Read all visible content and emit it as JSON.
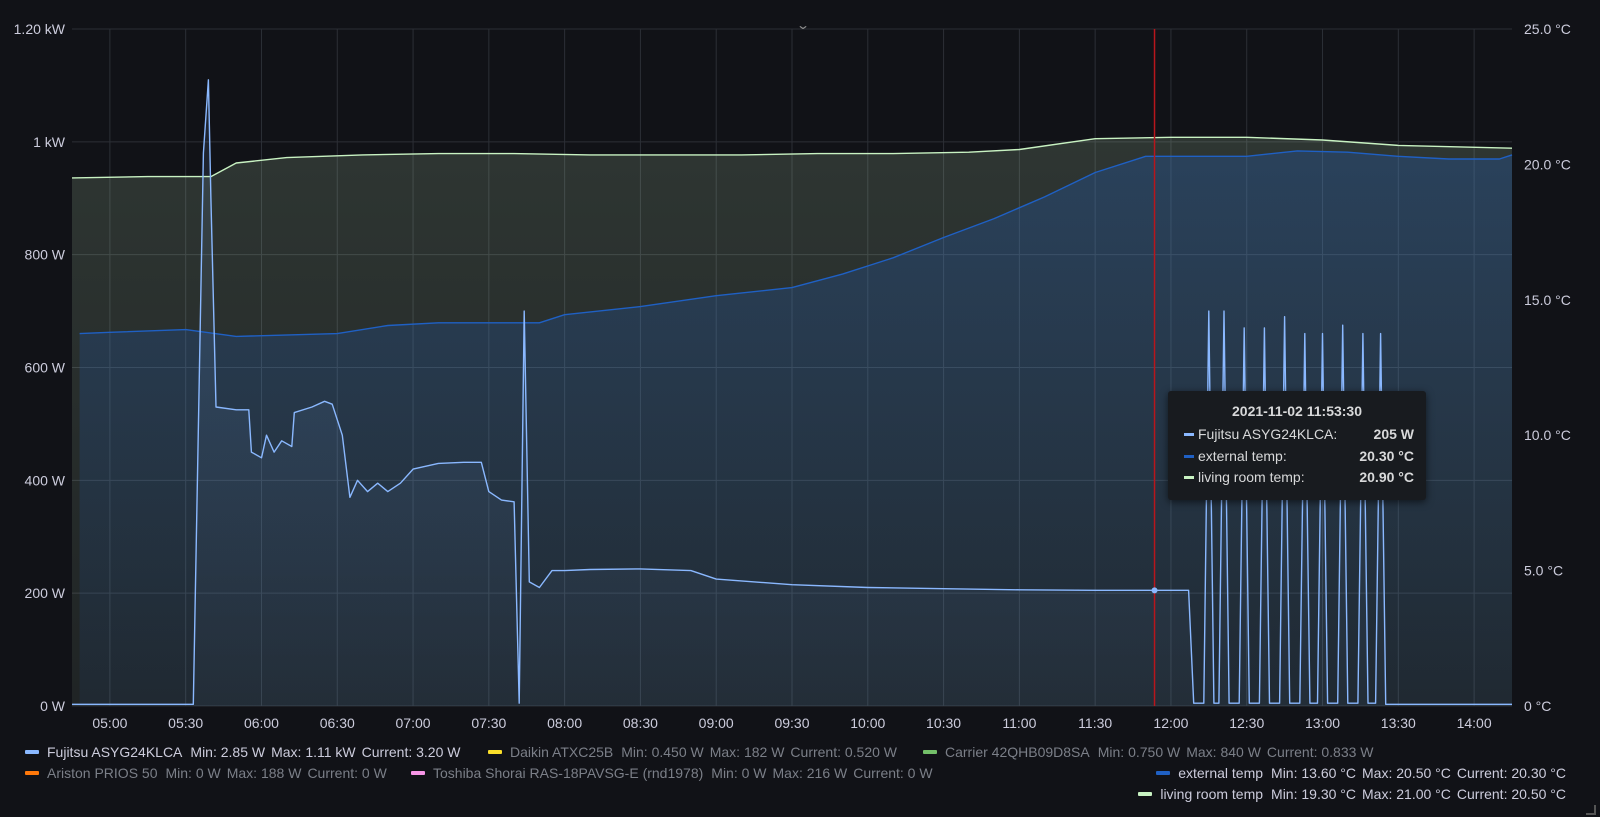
{
  "chart_data": {
    "type": "line",
    "x_ticks": [
      "05:00",
      "05:30",
      "06:00",
      "06:30",
      "07:00",
      "07:30",
      "08:00",
      "08:30",
      "09:00",
      "09:30",
      "10:00",
      "10:30",
      "11:00",
      "11:30",
      "12:00",
      "12:30",
      "13:00",
      "13:30",
      "14:00"
    ],
    "y_left_ticks": [
      "0 W",
      "200 W",
      "400 W",
      "600 W",
      "800 W",
      "1 kW",
      "1.20 kW"
    ],
    "y_left_values": [
      0,
      200,
      400,
      600,
      800,
      1000,
      1200
    ],
    "y_left_range": [
      0,
      1200
    ],
    "y_right_ticks": [
      "0 °C",
      "5.0 °C",
      "10.0 °C",
      "15.0 °C",
      "20.0 °C",
      "25.0 °C"
    ],
    "y_right_values": [
      0,
      5,
      10,
      15,
      20,
      25
    ],
    "y_right_range": [
      0,
      25
    ],
    "x_range": [
      "04:45",
      "14:15"
    ],
    "grid": true,
    "series": [
      {
        "name": "living room temp",
        "axis": "right",
        "color": "#c8f2c2",
        "fill": true,
        "points": [
          [
            "04:45",
            19.5
          ],
          [
            "05:15",
            19.55
          ],
          [
            "05:40",
            19.55
          ],
          [
            "05:50",
            20.05
          ],
          [
            "06:10",
            20.25
          ],
          [
            "06:40",
            20.35
          ],
          [
            "07:10",
            20.4
          ],
          [
            "07:40",
            20.4
          ],
          [
            "08:10",
            20.35
          ],
          [
            "08:40",
            20.35
          ],
          [
            "09:10",
            20.35
          ],
          [
            "09:40",
            20.4
          ],
          [
            "10:10",
            20.4
          ],
          [
            "10:40",
            20.45
          ],
          [
            "11:00",
            20.55
          ],
          [
            "11:30",
            20.95
          ],
          [
            "12:00",
            21.0
          ],
          [
            "12:30",
            21.0
          ],
          [
            "13:00",
            20.9
          ],
          [
            "13:30",
            20.7
          ],
          [
            "14:15",
            20.6
          ]
        ]
      },
      {
        "name": "external temp",
        "axis": "right",
        "color": "#1f60c4",
        "fill": true,
        "points": [
          [
            "04:48",
            13.75
          ],
          [
            "05:00",
            13.8
          ],
          [
            "05:30",
            13.9
          ],
          [
            "05:50",
            13.65
          ],
          [
            "06:30",
            13.75
          ],
          [
            "06:50",
            14.05
          ],
          [
            "07:10",
            14.15
          ],
          [
            "07:50",
            14.15
          ],
          [
            "08:00",
            14.45
          ],
          [
            "08:30",
            14.75
          ],
          [
            "09:00",
            15.15
          ],
          [
            "09:30",
            15.45
          ],
          [
            "09:50",
            15.95
          ],
          [
            "10:10",
            16.55
          ],
          [
            "10:30",
            17.3
          ],
          [
            "10:50",
            18.0
          ],
          [
            "11:10",
            18.8
          ],
          [
            "11:30",
            19.7
          ],
          [
            "11:50",
            20.3
          ],
          [
            "12:10",
            20.3
          ],
          [
            "12:30",
            20.3
          ],
          [
            "12:50",
            20.5
          ],
          [
            "13:10",
            20.45
          ],
          [
            "13:30",
            20.3
          ],
          [
            "13:50",
            20.2
          ],
          [
            "14:10",
            20.2
          ],
          [
            "14:15",
            20.35
          ]
        ]
      },
      {
        "name": "Fujitsu ASYG24KLCA",
        "axis": "left",
        "color": "#8ab8ff",
        "fill": true,
        "points": [
          [
            "04:45",
            3
          ],
          [
            "05:33",
            3
          ],
          [
            "05:37",
            980
          ],
          [
            "05:39",
            1110
          ],
          [
            "05:40",
            900
          ],
          [
            "05:42",
            530
          ],
          [
            "05:50",
            525
          ],
          [
            "05:55",
            525
          ],
          [
            "05:56",
            450
          ],
          [
            "06:00",
            440
          ],
          [
            "06:02",
            480
          ],
          [
            "06:05",
            450
          ],
          [
            "06:08",
            470
          ],
          [
            "06:12",
            460
          ],
          [
            "06:13",
            520
          ],
          [
            "06:20",
            530
          ],
          [
            "06:25",
            540
          ],
          [
            "06:28",
            535
          ],
          [
            "06:32",
            480
          ],
          [
            "06:35",
            370
          ],
          [
            "06:38",
            400
          ],
          [
            "06:42",
            380
          ],
          [
            "06:46",
            395
          ],
          [
            "06:50",
            380
          ],
          [
            "06:55",
            395
          ],
          [
            "07:00",
            420
          ],
          [
            "07:10",
            430
          ],
          [
            "07:20",
            432
          ],
          [
            "07:27",
            432
          ],
          [
            "07:30",
            380
          ],
          [
            "07:35",
            365
          ],
          [
            "07:40",
            362
          ],
          [
            "07:42",
            5
          ],
          [
            "07:44",
            700
          ],
          [
            "07:46",
            220
          ],
          [
            "07:50",
            210
          ],
          [
            "07:55",
            240
          ],
          [
            "08:00",
            240
          ],
          [
            "08:10",
            242
          ],
          [
            "08:30",
            243
          ],
          [
            "08:50",
            240
          ],
          [
            "09:00",
            225
          ],
          [
            "09:30",
            215
          ],
          [
            "10:00",
            210
          ],
          [
            "10:30",
            208
          ],
          [
            "11:00",
            206
          ],
          [
            "11:30",
            205
          ],
          [
            "11:53",
            205
          ],
          [
            "12:02",
            205
          ],
          [
            "12:07",
            205
          ],
          [
            "12:09",
            5
          ],
          [
            "12:13",
            5
          ],
          [
            "12:15",
            700
          ],
          [
            "12:17",
            5
          ],
          [
            "12:19",
            5
          ],
          [
            "12:21",
            700
          ],
          [
            "12:23",
            5
          ],
          [
            "12:27",
            5
          ],
          [
            "12:29",
            670
          ],
          [
            "12:31",
            5
          ],
          [
            "12:35",
            5
          ],
          [
            "12:37",
            670
          ],
          [
            "12:39",
            5
          ],
          [
            "12:43",
            5
          ],
          [
            "12:45",
            690
          ],
          [
            "12:47",
            5
          ],
          [
            "12:51",
            5
          ],
          [
            "12:53",
            660
          ],
          [
            "12:55",
            5
          ],
          [
            "12:58",
            5
          ],
          [
            "13:00",
            660
          ],
          [
            "13:02",
            5
          ],
          [
            "13:06",
            5
          ],
          [
            "13:08",
            675
          ],
          [
            "13:10",
            5
          ],
          [
            "13:14",
            5
          ],
          [
            "13:16",
            660
          ],
          [
            "13:18",
            5
          ],
          [
            "13:21",
            5
          ],
          [
            "13:23",
            660
          ],
          [
            "13:25",
            3
          ],
          [
            "14:15",
            3
          ]
        ]
      }
    ],
    "crosshair_time": "11:53:30"
  },
  "tooltip": {
    "title": "2021-11-02 11:53:30",
    "rows": [
      {
        "name": "Fujitsu ASYG24KLCA:",
        "value": "205 W",
        "color": "#8ab8ff"
      },
      {
        "name": "external temp:",
        "value": "20.30 °C",
        "color": "#1f60c4"
      },
      {
        "name": "living room temp:",
        "value": "20.90 °C",
        "color": "#c8f2c2"
      }
    ]
  },
  "legend": {
    "row1": [
      {
        "name": "Fujitsu ASYG24KLCA",
        "min": "Min: 2.85 W",
        "max": "Max: 1.11 kW",
        "current": "Current: 3.20 W",
        "color": "#8ab8ff"
      },
      {
        "name": "Daikin ATXC25B",
        "min": "Min: 0.450 W",
        "max": "Max: 182 W",
        "current": "Current: 0.520 W",
        "color": "#fade2a"
      },
      {
        "name": "Carrier 42QHB09D8SA",
        "min": "Min: 0.750 W",
        "max": "Max: 840 W",
        "current": "Current: 0.833 W",
        "color": "#73bf69"
      }
    ],
    "row2": [
      {
        "name": "Ariston PRIOS 50",
        "min": "Min: 0 W",
        "max": "Max: 188 W",
        "current": "Current: 0 W",
        "color": "#ff780a"
      },
      {
        "name": "Toshiba Shorai RAS-18PAVSG-E (rnd1978)",
        "min": "Min: 0 W",
        "max": "Max: 216 W",
        "current": "Current: 0 W",
        "color": "#f795e6"
      }
    ],
    "right": [
      {
        "name": "external temp",
        "min": "Min: 13.60 °C",
        "max": "Max: 20.50 °C",
        "current": "Current: 20.30 °C",
        "color": "#1f60c4"
      },
      {
        "name": "living room temp",
        "min": "Min: 19.30 °C",
        "max": "Max: 21.00 °C",
        "current": "Current: 20.50 °C",
        "color": "#c8f2c2"
      }
    ]
  }
}
